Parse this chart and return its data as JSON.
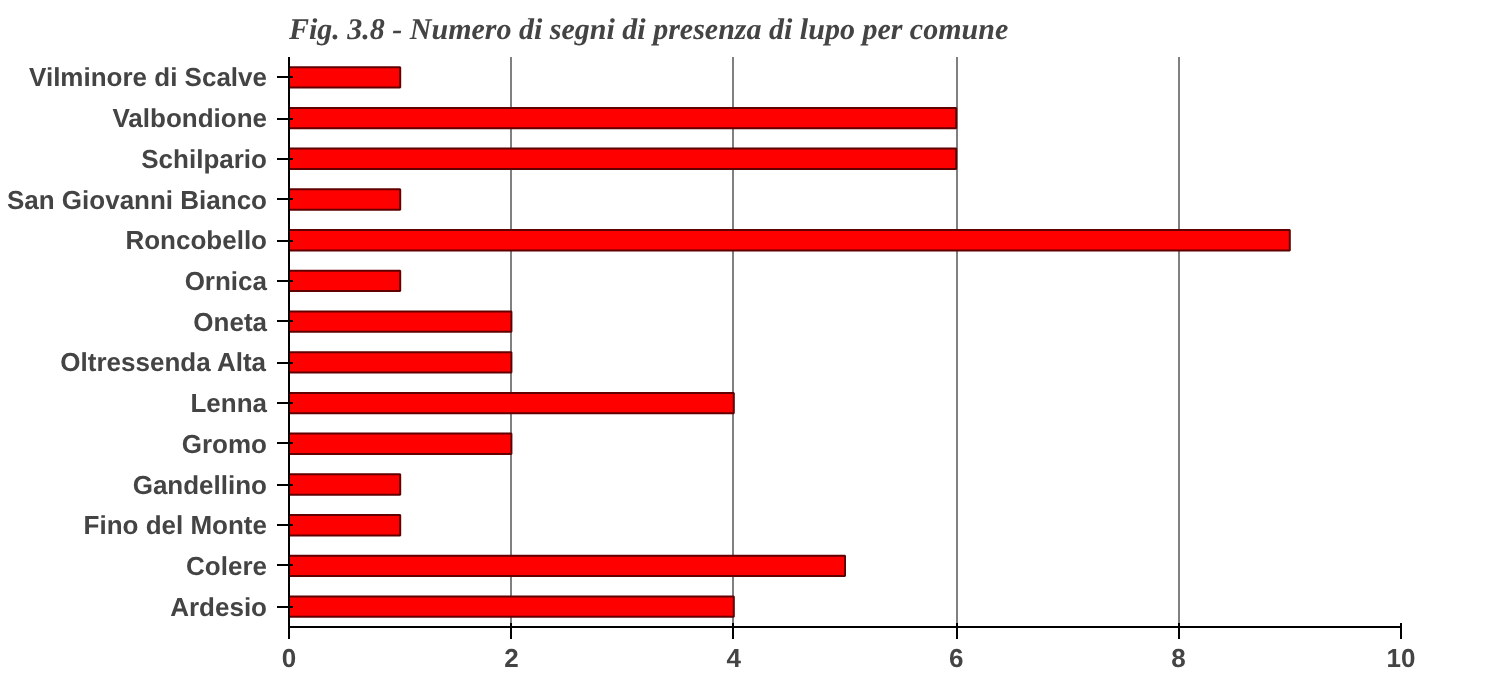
{
  "chart_data": {
    "type": "bar",
    "orientation": "horizontal",
    "title": "Fig. 3.8 - Numero di segni di presenza di lupo per comune",
    "categories": [
      "Vilminore di Scalve",
      "Valbondione",
      "Schilpario",
      "San Giovanni Bianco",
      "Roncobello",
      "Ornica",
      "Oneta",
      "Oltressenda Alta",
      "Lenna",
      "Gromo",
      "Gandellino",
      "Fino del Monte",
      "Colere",
      "Ardesio"
    ],
    "values": [
      1,
      6,
      6,
      1,
      9,
      1,
      2,
      2,
      4,
      2,
      1,
      1,
      5,
      4
    ],
    "color": "#ff0000",
    "xlim": [
      0,
      10
    ],
    "xticks": [
      0,
      2,
      4,
      6,
      8,
      10
    ],
    "grid": "x"
  }
}
